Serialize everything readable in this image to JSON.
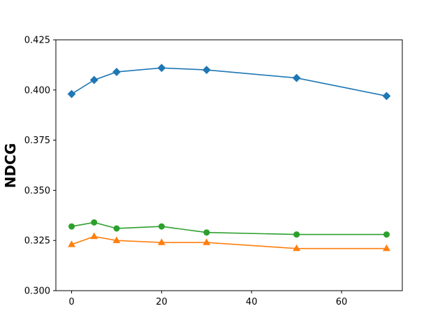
{
  "chart_data": {
    "type": "line",
    "title": "",
    "xlabel": "",
    "ylabel": "NDCG",
    "xlim": [
      -3.5,
      73.5
    ],
    "ylim": [
      0.3,
      0.425
    ],
    "xticks": [
      0,
      20,
      40,
      60
    ],
    "xtick_labels": [
      "0",
      "20",
      "40",
      "60"
    ],
    "yticks": [
      0.3,
      0.325,
      0.35,
      0.375,
      0.4,
      0.425
    ],
    "ytick_labels": [
      "0.300",
      "0.325",
      "0.350",
      "0.375",
      "0.400",
      "0.425"
    ],
    "grid": false,
    "x": [
      0,
      5,
      10,
      20,
      30,
      50,
      70
    ],
    "series": [
      {
        "color": "#1f77b4",
        "marker": "diamond",
        "values": [
          0.398,
          0.405,
          0.409,
          0.411,
          0.41,
          0.406,
          0.397
        ]
      },
      {
        "color": "#2ca02c",
        "marker": "circle",
        "values": [
          0.332,
          0.334,
          0.331,
          0.332,
          0.329,
          0.328,
          0.328
        ]
      },
      {
        "color": "#ff7f0e",
        "marker": "triangle",
        "values": [
          0.323,
          0.327,
          0.325,
          0.324,
          0.324,
          0.321,
          0.321
        ]
      }
    ]
  }
}
